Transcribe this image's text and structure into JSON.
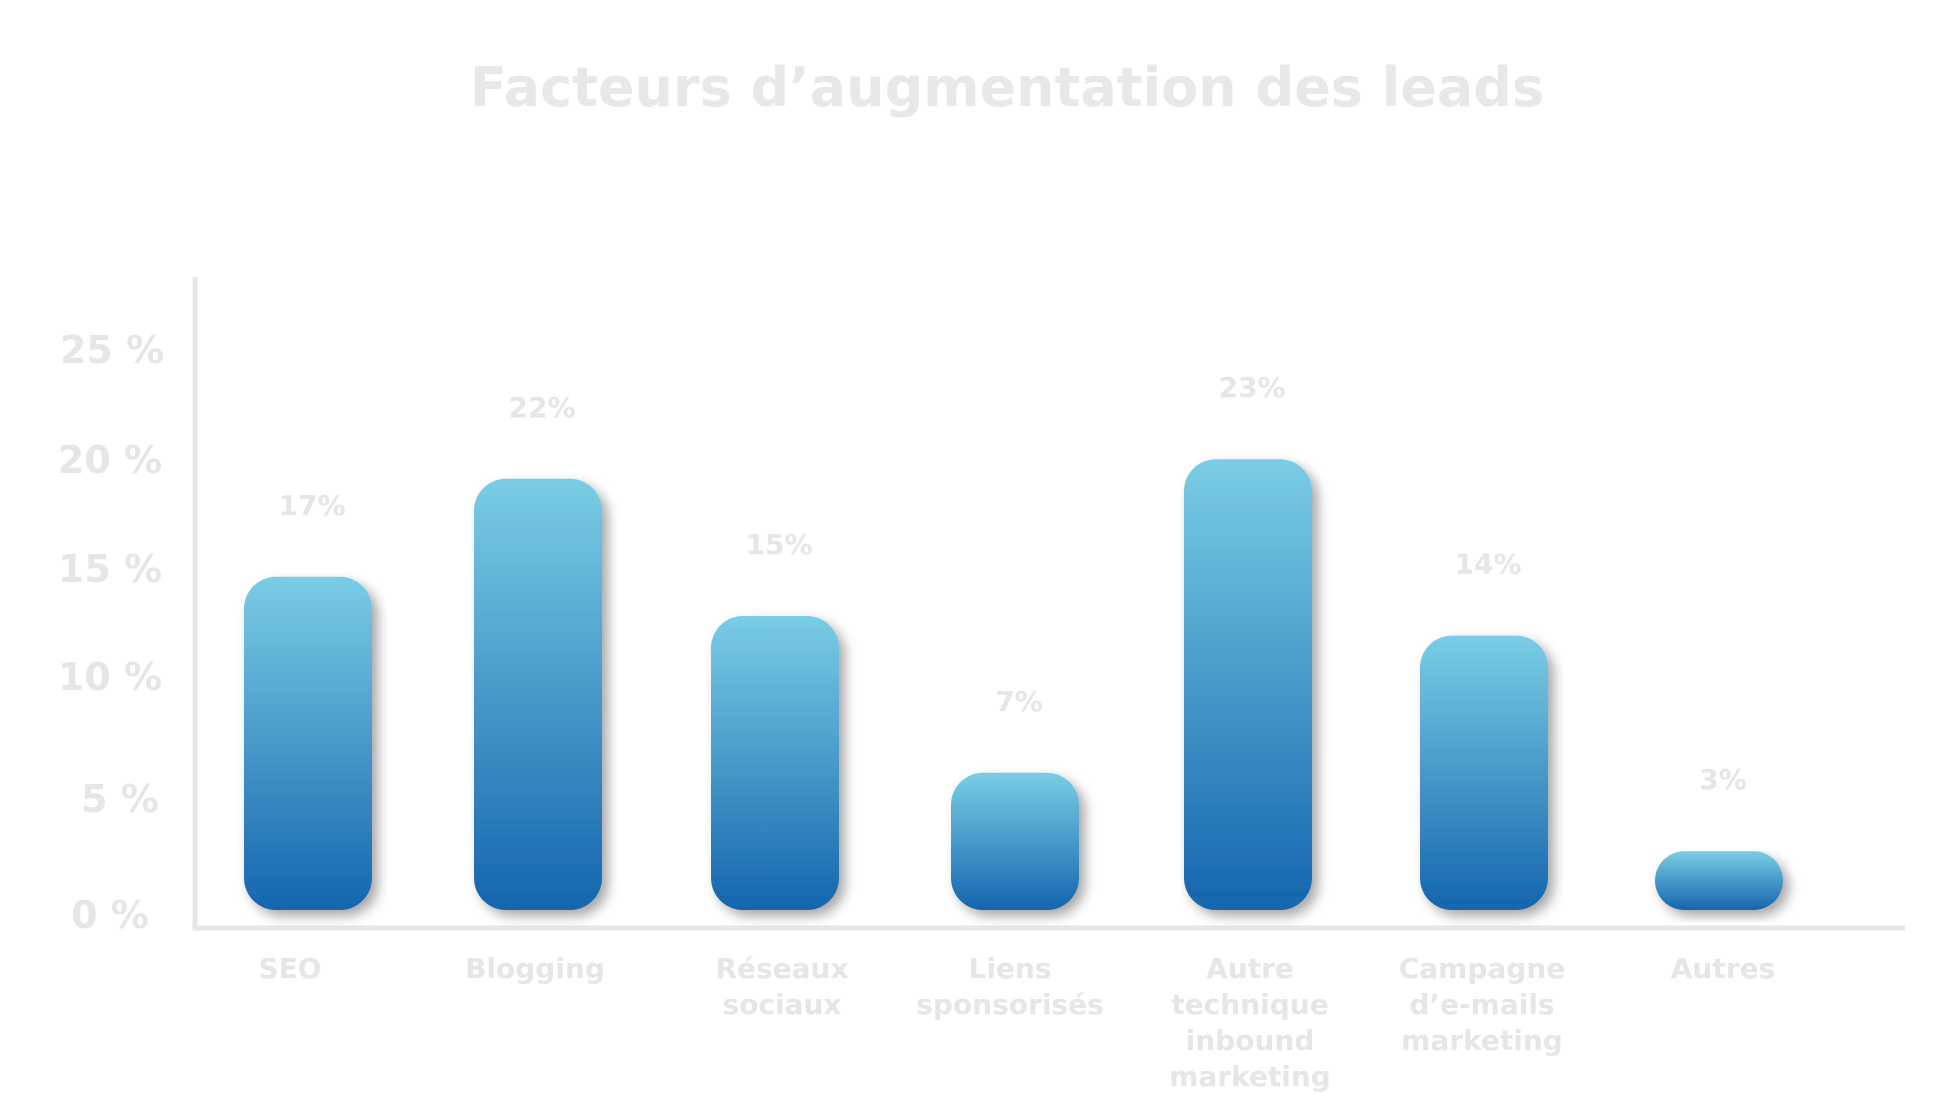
{
  "chart_data": {
    "type": "bar",
    "title": "Facteurs d’augmentation des leads",
    "categories": [
      [
        "SEO"
      ],
      [
        "Blogging"
      ],
      [
        "Réseaux",
        "sociaux"
      ],
      [
        "Liens",
        "sponsorisés"
      ],
      [
        "Autre",
        "technique",
        "inbound",
        "marketing"
      ],
      [
        "Campagne",
        "d’e-mails",
        "marketing"
      ],
      [
        "Autres"
      ]
    ],
    "values": [
      17,
      22,
      15,
      7,
      23,
      14,
      3
    ],
    "value_labels": [
      "17%",
      "22%",
      "15%",
      "7%",
      "23%",
      "14%",
      "3%"
    ],
    "y_ticks": [
      0,
      5,
      10,
      15,
      20,
      25
    ],
    "y_tick_labels": [
      "0 %",
      "5 %",
      "10 %",
      "15 %",
      "20 %",
      "25 %"
    ],
    "ylim": [
      0,
      25
    ],
    "grid": false,
    "colors": {
      "bar_top": "#7acde4",
      "bar_bottom": "#1565ae",
      "axis": "#e6e6e6",
      "text": "#e6e6e6"
    }
  }
}
